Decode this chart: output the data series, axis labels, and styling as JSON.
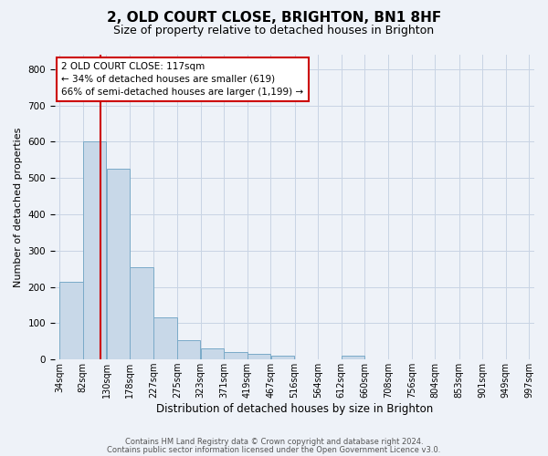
{
  "title1": "2, OLD COURT CLOSE, BRIGHTON, BN1 8HF",
  "title2": "Size of property relative to detached houses in Brighton",
  "xlabel": "Distribution of detached houses by size in Brighton",
  "ylabel": "Number of detached properties",
  "bar_values": [
    215,
    600,
    525,
    255,
    115,
    52,
    30,
    20,
    15,
    10,
    0,
    0,
    10,
    0,
    0,
    0,
    0,
    0,
    0,
    0
  ],
  "bin_edges": [
    34,
    82,
    130,
    178,
    227,
    275,
    323,
    371,
    419,
    467,
    516,
    564,
    612,
    660,
    708,
    756,
    804,
    853,
    901,
    949,
    997
  ],
  "tick_labels": [
    "34sqm",
    "82sqm",
    "130sqm",
    "178sqm",
    "227sqm",
    "275sqm",
    "323sqm",
    "371sqm",
    "419sqm",
    "467sqm",
    "516sqm",
    "564sqm",
    "612sqm",
    "660sqm",
    "708sqm",
    "756sqm",
    "804sqm",
    "853sqm",
    "901sqm",
    "949sqm",
    "997sqm"
  ],
  "bar_color": "#c8d8e8",
  "bar_edge_color": "#7aaac8",
  "vline_x": 117,
  "vline_color": "#cc0000",
  "annotation_line1": "2 OLD COURT CLOSE: 117sqm",
  "annotation_line2": "← 34% of detached houses are smaller (619)",
  "annotation_line3": "66% of semi-detached houses are larger (1,199) →",
  "annotation_box_color": "#cc0000",
  "ylim": [
    0,
    840
  ],
  "yticks": [
    0,
    100,
    200,
    300,
    400,
    500,
    600,
    700,
    800
  ],
  "grid_color": "#c8d4e4",
  "footer1": "Contains HM Land Registry data © Crown copyright and database right 2024.",
  "footer2": "Contains public sector information licensed under the Open Government Licence v3.0.",
  "bg_color": "#eef2f8",
  "plot_bg_color": "#eef2f8",
  "title1_fontsize": 11,
  "title2_fontsize": 9,
  "xlabel_fontsize": 8.5,
  "ylabel_fontsize": 8,
  "tick_fontsize": 7,
  "footer_fontsize": 6
}
